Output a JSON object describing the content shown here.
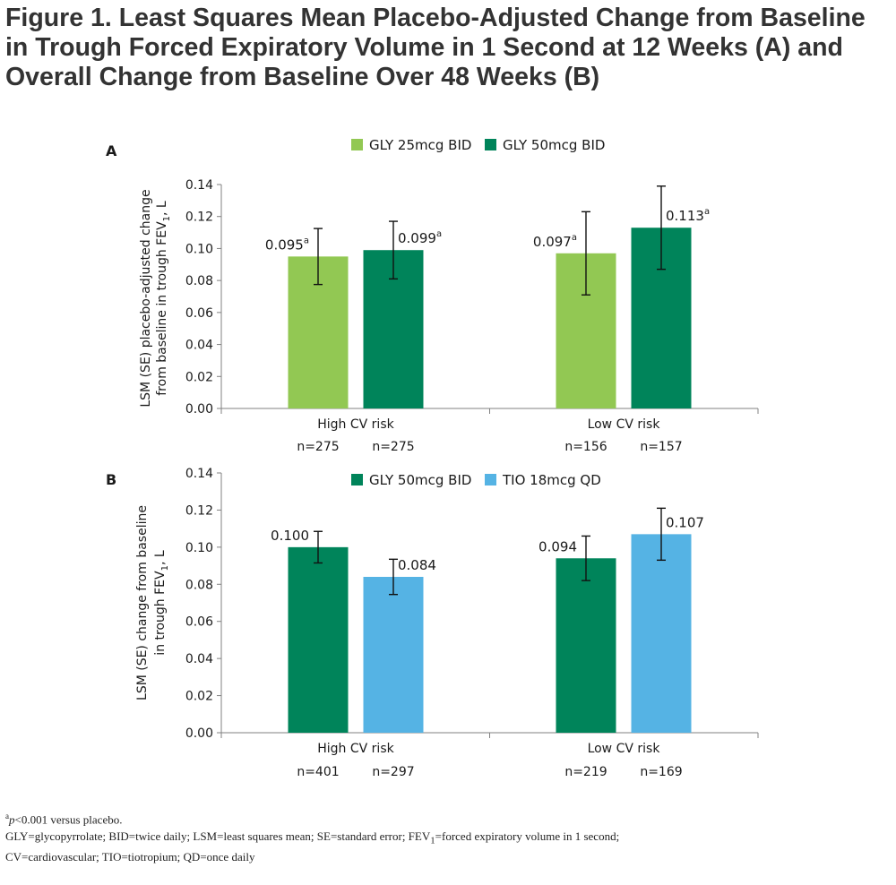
{
  "title": "Figure 1. Least Squares Mean Placebo-Adjusted Change from Baseline in Trough Forced Expiratory Volume in 1 Second at 12 Weeks (A) and Overall Change from Baseline Over 48 Weeks (B)",
  "chart_data": [
    {
      "panel": "A",
      "type": "bar",
      "ylabel_line1": "LSM (SE) placebo-adjusted change",
      "ylabel_line2": "from baseline in trough FEV",
      "ylabel_sub": "1",
      "ylabel_unit": ", L",
      "ylim": [
        0,
        0.14
      ],
      "yticks": [
        "0.00",
        "0.02",
        "0.04",
        "0.06",
        "0.08",
        "0.10",
        "0.12",
        "0.14"
      ],
      "grid": false,
      "legend_position": "top-center",
      "categories": [
        "High CV risk",
        "Low CV risk"
      ],
      "series": [
        {
          "name": "GLY 25mcg BID",
          "color": "#92c853",
          "values": [
            0.095,
            0.097
          ],
          "errors": [
            0.0175,
            0.026
          ],
          "labels": [
            "0.095",
            "0.097"
          ],
          "sup": "a",
          "n": [
            "n=275",
            "n=156"
          ]
        },
        {
          "name": "GLY 50mcg BID",
          "color": "#00845a",
          "values": [
            0.099,
            0.113
          ],
          "errors": [
            0.018,
            0.026
          ],
          "labels": [
            "0.099",
            "0.113"
          ],
          "sup": "a",
          "n": [
            "n=275",
            "n=157"
          ]
        }
      ]
    },
    {
      "panel": "B",
      "type": "bar",
      "ylabel_line1": "LSM (SE) change from baseline",
      "ylabel_line2": "in trough FEV",
      "ylabel_sub": "1",
      "ylabel_unit": ", L",
      "ylim": [
        0,
        0.14
      ],
      "yticks": [
        "0.00",
        "0.02",
        "0.04",
        "0.06",
        "0.08",
        "0.10",
        "0.12",
        "0.14"
      ],
      "grid": false,
      "legend_position": "top-center",
      "categories": [
        "High CV risk",
        "Low CV risk"
      ],
      "series": [
        {
          "name": "GLY 50mcg BID",
          "color": "#00845a",
          "values": [
            0.1,
            0.094
          ],
          "errors": [
            0.0085,
            0.012
          ],
          "labels": [
            "0.100",
            "0.094"
          ],
          "sup": "",
          "n": [
            "n=401",
            "n=219"
          ]
        },
        {
          "name": "TIO 18mcg QD",
          "color": "#55b3e4",
          "values": [
            0.084,
            0.107
          ],
          "errors": [
            0.0095,
            0.014
          ],
          "labels": [
            "0.084",
            "0.107"
          ],
          "sup": "",
          "n": [
            "n=297",
            "n=169"
          ]
        }
      ]
    }
  ],
  "footnotes": {
    "a_marker": "a",
    "a_p": "p",
    "a_rest": "<0.001 versus placebo.",
    "abbrev_line1_start": "GLY=glycopyrrolate; BID=twice daily; LSM=least squares mean; SE=standard error; FEV",
    "abbrev_line1_sub": "1",
    "abbrev_line1_end": "=forced expiratory volume in 1 second;",
    "abbrev_line2": "CV=cardiovascular; TIO=tiotropium; QD=once daily"
  }
}
